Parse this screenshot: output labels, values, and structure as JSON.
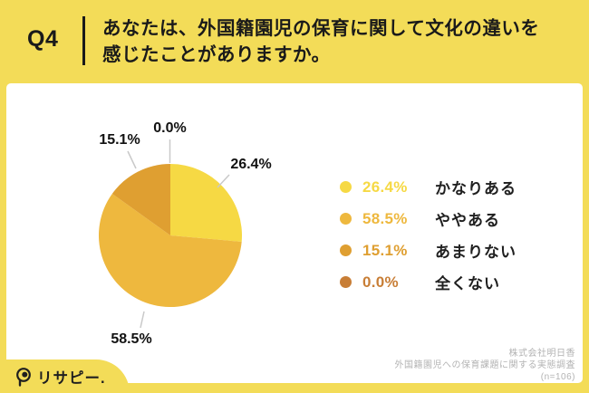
{
  "header": {
    "q_label": "Q4",
    "question_line1": "あなたは、外国籍園児の保育に関して文化の違いを",
    "question_line2": "感じたことがありますか。"
  },
  "chart_data": {
    "type": "pie",
    "title": "Q4 あなたは、外国籍園児の保育に関して文化の違いを感じたことがありますか。",
    "unit": "%",
    "start_angle_deg": 0,
    "direction": "clockwise",
    "slices": [
      {
        "label": "かなりある",
        "value": 26.4,
        "pct_label": "26.4%",
        "color": "#F6D944"
      },
      {
        "label": "ややある",
        "value": 58.5,
        "pct_label": "58.5%",
        "color": "#EEB83E"
      },
      {
        "label": "あまりない",
        "value": 15.1,
        "pct_label": "15.1%",
        "color": "#DF9F31"
      },
      {
        "label": "全くない",
        "value": 0.0,
        "pct_label": "0.0%",
        "color": "#C87E36"
      }
    ]
  },
  "legend": {
    "items": [
      {
        "pct": "26.4%",
        "label": "かなりある",
        "color": "#F6D944"
      },
      {
        "pct": "58.5%",
        "label": "ややある",
        "color": "#EEB83E"
      },
      {
        "pct": "15.1%",
        "label": "あまりない",
        "color": "#DF9F31"
      },
      {
        "pct": "0.0%",
        "label": "全くない",
        "color": "#C87E36"
      }
    ]
  },
  "footer": {
    "company": "株式会社明日香",
    "survey": "外国籍園児への保育課題に関する実態調査",
    "sample": "(n=106)"
  },
  "logo": {
    "text": "リサピー."
  },
  "colors": {
    "background": "#F3DC58",
    "card": "#FFFFFF",
    "text": "#1A1A1A",
    "muted_text": "#B3B3B3",
    "leader_line": "#C9C9C9"
  }
}
